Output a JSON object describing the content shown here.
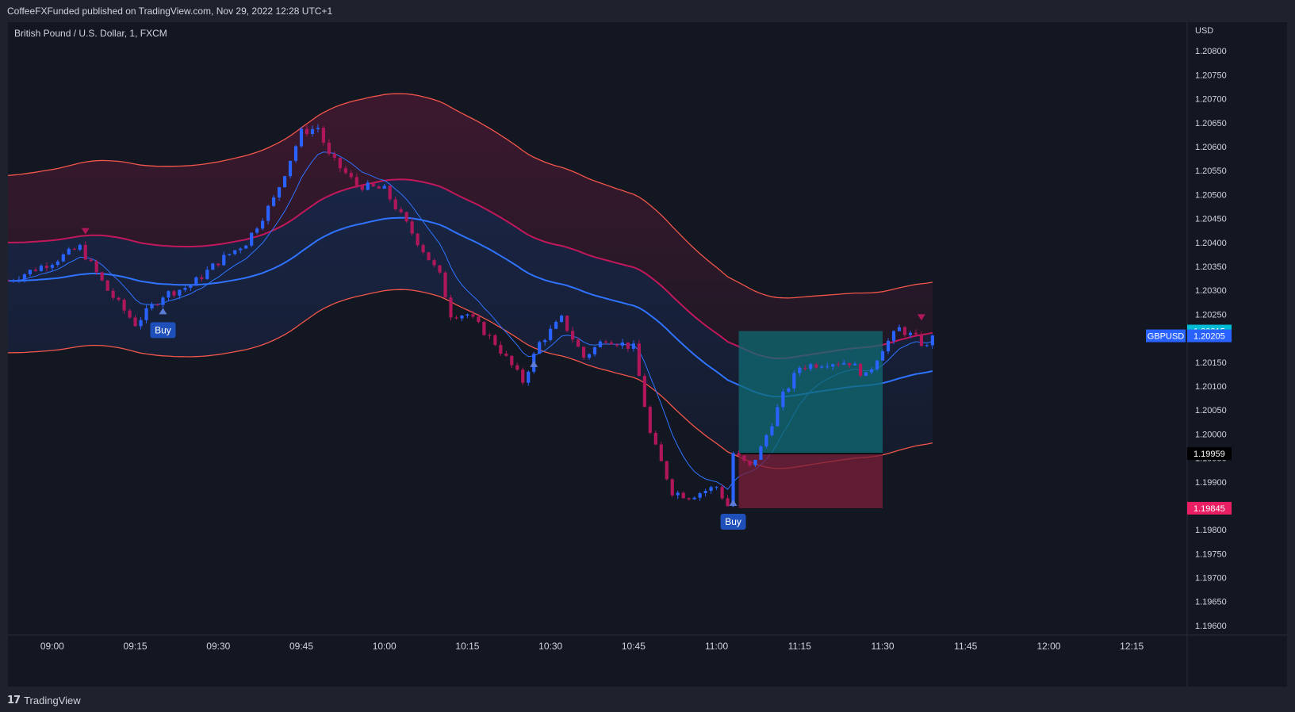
{
  "header": {
    "published_text": "CoffeeFXFunded published on TradingView.com, Nov 29, 2022 12:28 UTC+1"
  },
  "footer": {
    "brand": "TradingView",
    "logo_icon": "tradingview-logo-icon"
  },
  "colors": {
    "background": "#131722",
    "frame": "#1e222d",
    "bull_candle": "#2962ff",
    "bear_candle": "#b0175a",
    "ma_blue": "#2f73ff",
    "band_red": "#f2564a",
    "band_magenta": "#c2185b",
    "take_profit_zone": "#0f6b73",
    "stop_loss_zone": "#7a1f3a",
    "last_price_label": "#2962ff",
    "tp_label": "#00bcd4",
    "sl_label": "#e91e63"
  },
  "chart_data": {
    "type": "candlestick",
    "title": "British Pound / U.S. Dollar, 1, FXCM",
    "symbol": "GBPUSD",
    "currency": "USD",
    "timeframe_minutes": 1,
    "xlim": [
      "08:52",
      "12:25"
    ],
    "ylim": [
      1.1958,
      1.2086
    ],
    "y_ticks": [
      "1.20800",
      "1.20750",
      "1.20700",
      "1.20650",
      "1.20600",
      "1.20550",
      "1.20500",
      "1.20450",
      "1.20400",
      "1.20350",
      "1.20300",
      "1.20250",
      "1.20200",
      "1.20150",
      "1.20100",
      "1.20050",
      "1.20000",
      "1.19950",
      "1.19900",
      "1.19850",
      "1.19800",
      "1.19750",
      "1.19700",
      "1.19650",
      "1.19600"
    ],
    "x_ticks": [
      "09:00",
      "09:15",
      "09:30",
      "09:45",
      "10:00",
      "10:15",
      "10:30",
      "10:45",
      "11:00",
      "11:15",
      "11:30",
      "11:45",
      "12:00",
      "12:15"
    ],
    "price_labels": [
      {
        "name": "take-profit",
        "text": "1.20215",
        "value": 1.20215
      },
      {
        "name": "last-price",
        "symbol": "GBPUSD",
        "text": "1.20205",
        "value": 1.20205
      },
      {
        "name": "entry",
        "text": "1.19959",
        "value": 1.19959
      },
      {
        "name": "stop-loss",
        "text": "1.19845",
        "value": 1.19845
      }
    ],
    "position": {
      "type": "long",
      "start": "11:04",
      "end": "11:30",
      "entry": 1.19959,
      "take_profit": 1.20215,
      "stop_loss": 1.19845
    },
    "signals": [
      {
        "time": "09:20",
        "type": "buy",
        "label": "Buy",
        "price": 1.2025
      },
      {
        "time": "11:03",
        "type": "buy",
        "label": "Buy",
        "price": 1.1985
      },
      {
        "time": "10:27",
        "type": "up-arrow",
        "price": 1.2014
      },
      {
        "time": "09:06",
        "type": "down-arrow",
        "price": 1.2043
      },
      {
        "time": "11:37",
        "type": "down-arrow",
        "price": 1.2025
      }
    ],
    "key_points": [
      [
        "08:52",
        1.2032
      ],
      [
        "09:00",
        1.2036
      ],
      [
        "09:05",
        1.2039
      ],
      [
        "09:10",
        1.203
      ],
      [
        "09:15",
        1.2023
      ],
      [
        "09:20",
        1.2029
      ],
      [
        "09:25",
        1.2031
      ],
      [
        "09:30",
        1.2036
      ],
      [
        "09:35",
        1.204
      ],
      [
        "09:40",
        1.2049
      ],
      [
        "09:45",
        1.2063
      ],
      [
        "09:48",
        1.2064
      ],
      [
        "09:50",
        1.2058
      ],
      [
        "09:55",
        1.2052
      ],
      [
        "10:00",
        1.2051
      ],
      [
        "10:05",
        1.2042
      ],
      [
        "10:10",
        1.2033
      ],
      [
        "10:12",
        1.2025
      ],
      [
        "10:15",
        1.2025
      ],
      [
        "10:20",
        1.2019
      ],
      [
        "10:25",
        1.2011
      ],
      [
        "10:28",
        1.2019
      ],
      [
        "10:32",
        1.2024
      ],
      [
        "10:36",
        1.2016
      ],
      [
        "10:40",
        1.202
      ],
      [
        "10:45",
        1.2018
      ],
      [
        "10:48",
        1.2
      ],
      [
        "10:52",
        1.1988
      ],
      [
        "10:55",
        1.1987
      ],
      [
        "11:00",
        1.1989
      ],
      [
        "11:02",
        1.1985
      ],
      [
        "11:03",
        1.1996
      ],
      [
        "11:06",
        1.1993
      ],
      [
        "11:08",
        1.1997
      ],
      [
        "11:12",
        1.2008
      ],
      [
        "11:15",
        1.2014
      ],
      [
        "11:20",
        1.2015
      ],
      [
        "11:24",
        1.2015
      ],
      [
        "11:27",
        1.2012
      ],
      [
        "11:30",
        1.2018
      ],
      [
        "11:33",
        1.2022
      ],
      [
        "11:36",
        1.202
      ],
      [
        "11:38",
        1.2018
      ],
      [
        "11:39",
        1.2021
      ]
    ]
  }
}
